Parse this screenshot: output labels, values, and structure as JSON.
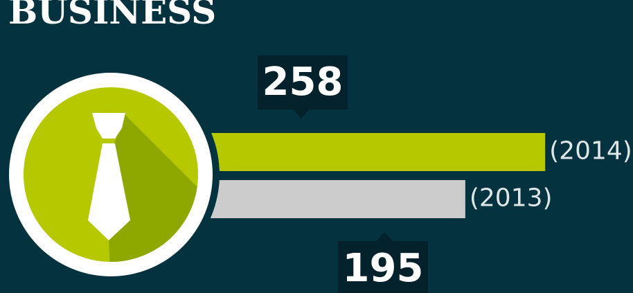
{
  "chart_data": {
    "type": "hbar",
    "title": "BUSINESS",
    "categories": [
      "(2014)",
      "(2013)"
    ],
    "values": [
      258,
      195
    ],
    "colors": [
      "#b5c800",
      "#cccccc"
    ]
  }
}
